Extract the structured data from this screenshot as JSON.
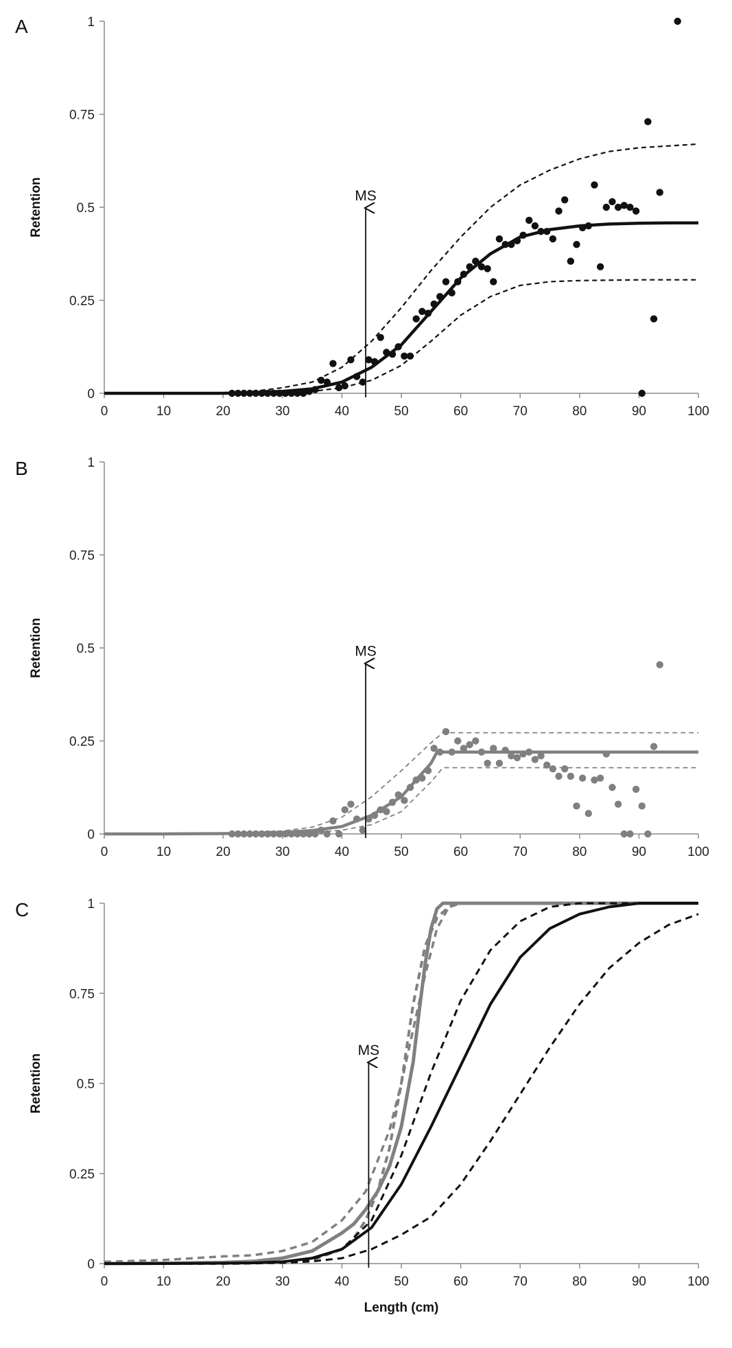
{
  "chart_data": [
    {
      "panel": "A",
      "type": "scatter",
      "ylabel": "Retention",
      "xlabel": "",
      "xlim": [
        0,
        100
      ],
      "ylim": [
        0,
        1
      ],
      "xticks": [
        "0",
        "10",
        "20",
        "30",
        "40",
        "50",
        "60",
        "70",
        "80",
        "90",
        "100"
      ],
      "yticks": [
        "0",
        "0.25",
        "0.5",
        "0.75",
        "1"
      ],
      "ms": {
        "label": "MS",
        "x": 44,
        "y_top": 0.5
      },
      "color": "#111111",
      "points": [
        [
          21.5,
          0
        ],
        [
          22.5,
          0
        ],
        [
          23.5,
          0
        ],
        [
          24.5,
          0
        ],
        [
          25.5,
          0
        ],
        [
          26.5,
          0
        ],
        [
          27.5,
          0
        ],
        [
          28.5,
          0
        ],
        [
          29.5,
          0
        ],
        [
          30.5,
          0
        ],
        [
          31.5,
          0
        ],
        [
          32.5,
          0
        ],
        [
          33.5,
          0
        ],
        [
          34.5,
          0.005
        ],
        [
          35.5,
          0.01
        ],
        [
          36.5,
          0.035
        ],
        [
          37.5,
          0.03
        ],
        [
          38.5,
          0.08
        ],
        [
          39.5,
          0.015
        ],
        [
          40.5,
          0.02
        ],
        [
          41.5,
          0.09
        ],
        [
          42.5,
          0.045
        ],
        [
          43.5,
          0.03
        ],
        [
          44.5,
          0.09
        ],
        [
          45.5,
          0.085
        ],
        [
          46.5,
          0.15
        ],
        [
          47.5,
          0.11
        ],
        [
          48.5,
          0.105
        ],
        [
          49.5,
          0.125
        ],
        [
          50.5,
          0.1
        ],
        [
          51.5,
          0.1
        ],
        [
          52.5,
          0.2
        ],
        [
          53.5,
          0.22
        ],
        [
          54.5,
          0.215
        ],
        [
          55.5,
          0.24
        ],
        [
          56.5,
          0.26
        ],
        [
          57.5,
          0.3
        ],
        [
          58.5,
          0.27
        ],
        [
          59.5,
          0.3
        ],
        [
          60.5,
          0.32
        ],
        [
          61.5,
          0.34
        ],
        [
          62.5,
          0.355
        ],
        [
          63.5,
          0.34
        ],
        [
          64.5,
          0.335
        ],
        [
          65.5,
          0.3
        ],
        [
          66.5,
          0.415
        ],
        [
          67.5,
          0.4
        ],
        [
          68.5,
          0.4
        ],
        [
          69.5,
          0.41
        ],
        [
          70.5,
          0.425
        ],
        [
          71.5,
          0.465
        ],
        [
          72.5,
          0.45
        ],
        [
          73.5,
          0.435
        ],
        [
          74.5,
          0.435
        ],
        [
          75.5,
          0.415
        ],
        [
          76.5,
          0.49
        ],
        [
          77.5,
          0.52
        ],
        [
          78.5,
          0.355
        ],
        [
          79.5,
          0.4
        ],
        [
          80.5,
          0.445
        ],
        [
          81.5,
          0.45
        ],
        [
          82.5,
          0.56
        ],
        [
          83.5,
          0.34
        ],
        [
          84.5,
          0.5
        ],
        [
          85.5,
          0.515
        ],
        [
          86.5,
          0.5
        ],
        [
          87.5,
          0.505
        ],
        [
          88.5,
          0.5
        ],
        [
          89.5,
          0.49
        ],
        [
          90.5,
          0
        ],
        [
          91.5,
          0.73
        ],
        [
          92.5,
          0.2
        ],
        [
          93.5,
          0.54
        ],
        [
          96.5,
          1
        ]
      ],
      "fit": {
        "x": [
          0,
          10,
          20,
          25,
          30,
          35,
          40,
          45,
          50,
          55,
          60,
          65,
          70,
          75,
          80,
          85,
          90,
          95,
          100
        ],
        "y": [
          0,
          0,
          0,
          0.002,
          0.005,
          0.012,
          0.03,
          0.07,
          0.13,
          0.22,
          0.31,
          0.375,
          0.42,
          0.44,
          0.45,
          0.455,
          0.457,
          0.458,
          0.458
        ]
      },
      "upper": {
        "x": [
          0,
          10,
          20,
          25,
          30,
          35,
          40,
          45,
          50,
          55,
          60,
          65,
          70,
          75,
          80,
          85,
          90,
          95,
          100
        ],
        "y": [
          0,
          0,
          0,
          0.005,
          0.015,
          0.03,
          0.07,
          0.14,
          0.23,
          0.33,
          0.42,
          0.5,
          0.56,
          0.6,
          0.63,
          0.65,
          0.66,
          0.665,
          0.67
        ]
      },
      "lower": {
        "x": [
          0,
          10,
          20,
          25,
          30,
          35,
          40,
          45,
          50,
          55,
          60,
          65,
          70,
          75,
          80,
          85,
          90,
          95,
          100
        ],
        "y": [
          0,
          0,
          0,
          0.001,
          0.002,
          0.005,
          0.015,
          0.035,
          0.075,
          0.14,
          0.21,
          0.26,
          0.29,
          0.3,
          0.303,
          0.304,
          0.305,
          0.305,
          0.305
        ]
      }
    },
    {
      "panel": "B",
      "type": "scatter",
      "ylabel": "Retention",
      "xlabel": "",
      "xlim": [
        0,
        100
      ],
      "ylim": [
        0,
        1
      ],
      "xticks": [
        "0",
        "10",
        "20",
        "30",
        "40",
        "50",
        "60",
        "70",
        "80",
        "90",
        "100"
      ],
      "yticks": [
        "0",
        "0.25",
        "0.5",
        "0.75",
        "1"
      ],
      "ms": {
        "label": "MS",
        "x": 44,
        "y_top": 0.46
      },
      "color": "#808080",
      "points": [
        [
          21.5,
          0
        ],
        [
          22.5,
          0
        ],
        [
          23.5,
          0
        ],
        [
          24.5,
          0
        ],
        [
          25.5,
          0
        ],
        [
          26.5,
          0
        ],
        [
          27.5,
          0
        ],
        [
          28.5,
          0
        ],
        [
          29.5,
          0
        ],
        [
          30.5,
          0
        ],
        [
          31.5,
          0
        ],
        [
          32.5,
          0
        ],
        [
          33.5,
          0
        ],
        [
          34.5,
          0
        ],
        [
          35.5,
          0
        ],
        [
          36.5,
          0.01
        ],
        [
          37.5,
          0
        ],
        [
          38.5,
          0.035
        ],
        [
          39.5,
          0
        ],
        [
          40.5,
          0.065
        ],
        [
          41.5,
          0.08
        ],
        [
          42.5,
          0.04
        ],
        [
          43.5,
          0.01
        ],
        [
          44.5,
          0.04
        ],
        [
          45.5,
          0.05
        ],
        [
          46.5,
          0.065
        ],
        [
          47.5,
          0.06
        ],
        [
          48.5,
          0.085
        ],
        [
          49.5,
          0.105
        ],
        [
          50.5,
          0.09
        ],
        [
          51.5,
          0.125
        ],
        [
          52.5,
          0.145
        ],
        [
          53.5,
          0.15
        ],
        [
          54.5,
          0.17
        ],
        [
          55.5,
          0.23
        ],
        [
          56.5,
          0.22
        ],
        [
          57.5,
          0.275
        ],
        [
          58.5,
          0.22
        ],
        [
          59.5,
          0.25
        ],
        [
          60.5,
          0.23
        ],
        [
          61.5,
          0.24
        ],
        [
          62.5,
          0.25
        ],
        [
          63.5,
          0.22
        ],
        [
          64.5,
          0.19
        ],
        [
          65.5,
          0.23
        ],
        [
          66.5,
          0.19
        ],
        [
          67.5,
          0.225
        ],
        [
          68.5,
          0.21
        ],
        [
          69.5,
          0.205
        ],
        [
          70.5,
          0.215
        ],
        [
          71.5,
          0.22
        ],
        [
          72.5,
          0.2
        ],
        [
          73.5,
          0.21
        ],
        [
          74.5,
          0.185
        ],
        [
          75.5,
          0.175
        ],
        [
          76.5,
          0.155
        ],
        [
          77.5,
          0.175
        ],
        [
          78.5,
          0.155
        ],
        [
          79.5,
          0.075
        ],
        [
          80.5,
          0.15
        ],
        [
          81.5,
          0.055
        ],
        [
          82.5,
          0.145
        ],
        [
          83.5,
          0.15
        ],
        [
          84.5,
          0.215
        ],
        [
          85.5,
          0.125
        ],
        [
          86.5,
          0.08
        ],
        [
          87.5,
          0
        ],
        [
          88.5,
          0
        ],
        [
          89.5,
          0.12
        ],
        [
          90.5,
          0.075
        ],
        [
          91.5,
          0
        ],
        [
          92.5,
          0.235
        ],
        [
          93.5,
          0.455
        ]
      ],
      "fit": {
        "x": [
          0,
          10,
          20,
          25,
          30,
          35,
          40,
          45,
          50,
          55,
          56,
          60,
          70,
          80,
          90,
          100
        ],
        "y": [
          0,
          0,
          0.001,
          0.002,
          0.004,
          0.009,
          0.02,
          0.05,
          0.1,
          0.19,
          0.22,
          0.22,
          0.22,
          0.22,
          0.22,
          0.22
        ]
      },
      "upper": {
        "x": [
          0,
          10,
          20,
          25,
          30,
          35,
          40,
          45,
          50,
          55,
          57,
          60,
          70,
          80,
          90,
          100
        ],
        "y": [
          0,
          0,
          0.002,
          0.004,
          0.008,
          0.018,
          0.045,
          0.1,
          0.17,
          0.245,
          0.272,
          0.272,
          0.272,
          0.272,
          0.272,
          0.272
        ]
      },
      "lower": {
        "x": [
          0,
          10,
          20,
          25,
          30,
          35,
          40,
          45,
          50,
          55,
          57,
          60,
          70,
          80,
          90,
          100
        ],
        "y": [
          0,
          0,
          0,
          0.001,
          0.002,
          0.004,
          0.01,
          0.025,
          0.06,
          0.14,
          0.178,
          0.178,
          0.178,
          0.178,
          0.178,
          0.178
        ]
      }
    },
    {
      "panel": "C",
      "type": "line",
      "ylabel": "Retention",
      "xlabel": "Length (cm)",
      "xlim": [
        0,
        100
      ],
      "ylim": [
        0,
        1
      ],
      "xticks": [
        "0",
        "10",
        "20",
        "30",
        "40",
        "50",
        "60",
        "70",
        "80",
        "90",
        "100"
      ],
      "yticks": [
        "0",
        "0.25",
        "0.5",
        "0.75",
        "1"
      ],
      "ms": {
        "label": "MS",
        "x": 44.5,
        "y_top": 0.56
      },
      "series": [
        {
          "color": "#808080",
          "style": "solid",
          "width": 5,
          "x": [
            0,
            10,
            20,
            25,
            30,
            35,
            40,
            42,
            44,
            46,
            48,
            50,
            52,
            53,
            54,
            55,
            56,
            57,
            60,
            70,
            80,
            90,
            100
          ],
          "y": [
            0,
            0.001,
            0.003,
            0.006,
            0.015,
            0.035,
            0.085,
            0.11,
            0.15,
            0.2,
            0.27,
            0.38,
            0.56,
            0.7,
            0.83,
            0.93,
            0.985,
            1,
            1,
            1,
            1,
            1,
            1
          ]
        },
        {
          "color": "#808080",
          "style": "dash",
          "width": 3.5,
          "x": [
            0,
            10,
            20,
            25,
            30,
            35,
            40,
            44,
            48,
            50,
            52,
            54,
            56,
            58,
            60,
            70,
            80,
            90,
            100
          ],
          "y": [
            0.005,
            0.01,
            0.02,
            0.023,
            0.035,
            0.06,
            0.12,
            0.2,
            0.37,
            0.5,
            0.65,
            0.8,
            0.93,
            0.99,
            1,
            1,
            1,
            1,
            1
          ]
        },
        {
          "color": "#808080",
          "style": "dash",
          "width": 4,
          "x": [
            0,
            10,
            20,
            25,
            30,
            35,
            40,
            42,
            44,
            46,
            48,
            50,
            52,
            54,
            56,
            58,
            60,
            70,
            80,
            90,
            100
          ],
          "y": [
            0,
            0,
            0,
            0.001,
            0.004,
            0.01,
            0.04,
            0.07,
            0.12,
            0.2,
            0.32,
            0.5,
            0.72,
            0.88,
            0.96,
            0.99,
            1,
            1,
            1,
            1,
            1
          ]
        },
        {
          "color": "#111111",
          "style": "solid",
          "width": 4,
          "x": [
            0,
            10,
            20,
            25,
            30,
            35,
            40,
            45,
            50,
            55,
            60,
            65,
            70,
            75,
            80,
            85,
            90,
            95,
            100
          ],
          "y": [
            0,
            0,
            0.001,
            0.002,
            0.005,
            0.015,
            0.04,
            0.1,
            0.22,
            0.38,
            0.55,
            0.72,
            0.85,
            0.93,
            0.97,
            0.99,
            1,
            1,
            1
          ]
        },
        {
          "color": "#111111",
          "style": "dash",
          "width": 3,
          "x": [
            0,
            10,
            20,
            25,
            30,
            35,
            40,
            45,
            50,
            55,
            60,
            65,
            70,
            75,
            80,
            90,
            100
          ],
          "y": [
            0,
            0,
            0,
            0.001,
            0.004,
            0.012,
            0.04,
            0.12,
            0.3,
            0.53,
            0.73,
            0.87,
            0.95,
            0.99,
            1,
            1,
            1
          ]
        },
        {
          "color": "#111111",
          "style": "dash",
          "width": 3,
          "x": [
            0,
            10,
            20,
            30,
            35,
            40,
            45,
            50,
            55,
            60,
            65,
            70,
            75,
            80,
            85,
            90,
            95,
            100
          ],
          "y": [
            0,
            0,
            0,
            0.002,
            0.006,
            0.015,
            0.04,
            0.08,
            0.13,
            0.22,
            0.34,
            0.47,
            0.6,
            0.72,
            0.82,
            0.89,
            0.94,
            0.97
          ]
        }
      ]
    }
  ]
}
